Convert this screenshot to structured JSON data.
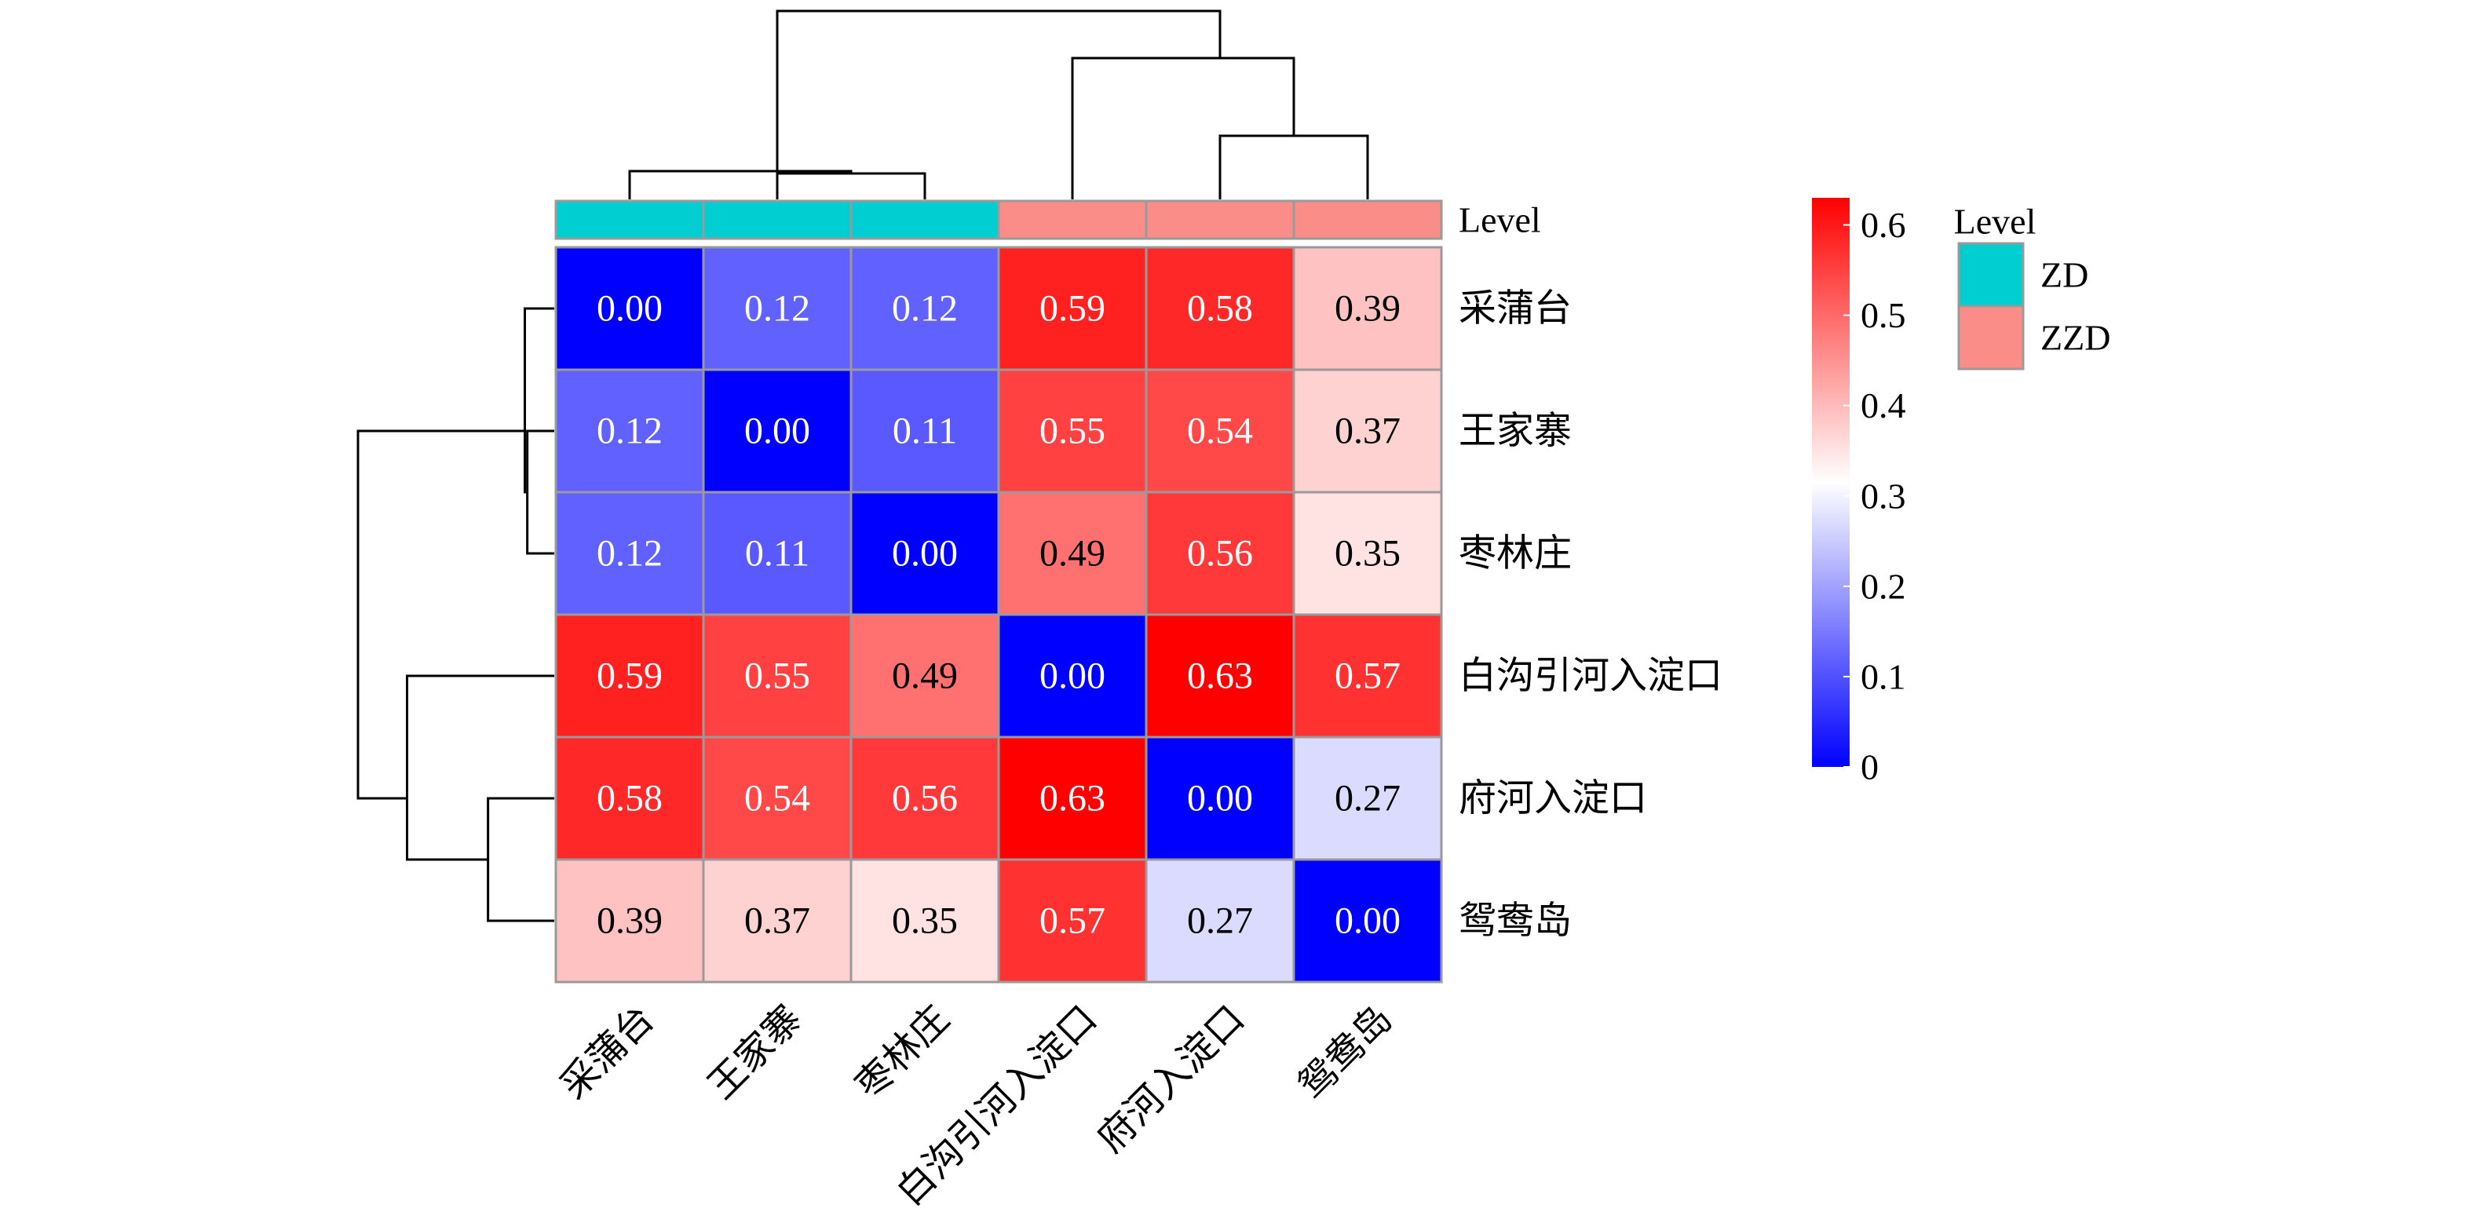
{
  "chart_data": {
    "type": "heatmap",
    "rows": [
      "采蒲台",
      "王家寨",
      "枣林庄",
      "白沟引河入淀口",
      "府河入淀口",
      "鸳鸯岛"
    ],
    "columns": [
      "采蒲台",
      "王家寨",
      "枣林庄",
      "白沟引河入淀口",
      "府河入淀口",
      "鸳鸯岛"
    ],
    "values": [
      [
        0.0,
        0.12,
        0.12,
        0.59,
        0.58,
        0.39
      ],
      [
        0.12,
        0.0,
        0.11,
        0.55,
        0.54,
        0.37
      ],
      [
        0.12,
        0.11,
        0.0,
        0.49,
        0.56,
        0.35
      ],
      [
        0.59,
        0.55,
        0.49,
        0.0,
        0.63,
        0.57
      ],
      [
        0.58,
        0.54,
        0.56,
        0.63,
        0.0,
        0.27
      ],
      [
        0.39,
        0.37,
        0.35,
        0.57,
        0.27,
        0.0
      ]
    ],
    "value_labels": [
      [
        "0.00",
        "0.12",
        "0.12",
        "0.59",
        "0.58",
        "0.39"
      ],
      [
        "0.12",
        "0.00",
        "0.11",
        "0.55",
        "0.54",
        "0.37"
      ],
      [
        "0.12",
        "0.11",
        "0.00",
        "0.49",
        "0.56",
        "0.35"
      ],
      [
        "0.59",
        "0.55",
        "0.49",
        "0.00",
        "0.63",
        "0.57"
      ],
      [
        "0.58",
        "0.54",
        "0.56",
        "0.63",
        "0.00",
        "0.27"
      ],
      [
        "0.39",
        "0.37",
        "0.35",
        "0.57",
        "0.27",
        "0.00"
      ]
    ],
    "annotation": {
      "name": "Level",
      "column_levels": [
        "ZD",
        "ZD",
        "ZD",
        "ZZD",
        "ZZD",
        "ZZD"
      ],
      "levels": [
        {
          "label": "ZD",
          "color": "#00CED1"
        },
        {
          "label": "ZZD",
          "color": "#FA8D87"
        }
      ]
    },
    "color_scale": {
      "min": 0,
      "mid": 0.315,
      "max": 0.63,
      "low_color": "#0000FF",
      "mid_color": "#FFFFFF",
      "high_color": "#FF0000",
      "ticks": [
        0,
        0.1,
        0.2,
        0.3,
        0.4,
        0.5,
        0.6
      ],
      "tick_labels": [
        "0",
        "0.1",
        "0.2",
        "0.3",
        "0.4",
        "0.5",
        "0.6"
      ]
    },
    "dendrogram": {
      "row_order": [
        "采蒲台",
        "王家寨",
        "枣林庄",
        "白沟引河入淀口",
        "府河入淀口",
        "鸳鸯岛"
      ],
      "column_order": [
        "采蒲台",
        "王家寨",
        "枣林庄",
        "白沟引河入淀口",
        "府河入淀口",
        "鸳鸯岛"
      ],
      "merges": [
        {
          "a": [
            1
          ],
          "b": [
            2
          ],
          "height": 0.11
        },
        {
          "a": [
            0
          ],
          "b": [
            1,
            2
          ],
          "height": 0.12
        },
        {
          "a": [
            4
          ],
          "b": [
            5
          ],
          "height": 0.27
        },
        {
          "a": [
            3
          ],
          "b": [
            4,
            5
          ],
          "height": 0.6
        },
        {
          "a": [
            0,
            1,
            2
          ],
          "b": [
            3,
            4,
            5
          ],
          "height": 0.8
        }
      ]
    }
  }
}
